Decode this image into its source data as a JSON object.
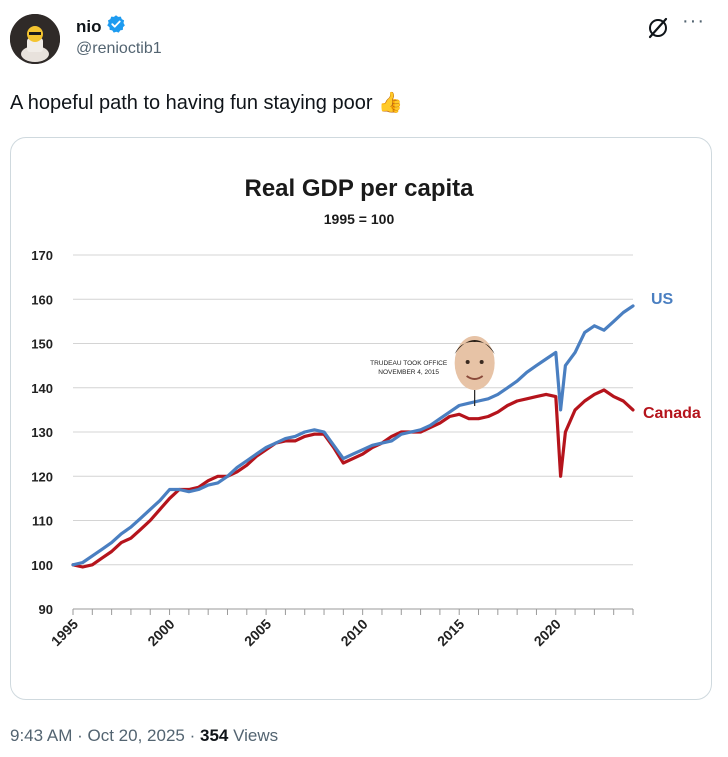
{
  "author": {
    "name": "nio",
    "handle": "@renioctib1",
    "verified": true
  },
  "tweet": {
    "text": "A hopeful path to having fun staying poor",
    "emoji": "👍"
  },
  "meta": {
    "time": "9:43 AM",
    "sep1": "·",
    "date": "Oct 20, 2025",
    "sep2": "·",
    "views": "354",
    "views_label": "Views"
  },
  "icons": {
    "verified": "verified-badge-icon",
    "grok": "grok-icon",
    "more": "more-icon"
  },
  "colors": {
    "us": "#4a7fc1",
    "canada": "#b5141c",
    "verified": "#1d9bf0"
  },
  "chart_data": {
    "type": "line",
    "title": "Real GDP per capita",
    "subtitle": "1995 = 100",
    "annotation": [
      "TRUDEAU TOOK OFFICE",
      "NOVEMBER 4, 2015"
    ],
    "annotation_x": 2015.8,
    "xlim": [
      1995,
      2024
    ],
    "ylim": [
      90,
      170
    ],
    "yticks": [
      "90",
      "100",
      "110",
      "120",
      "130",
      "140",
      "150",
      "160",
      "170"
    ],
    "xtick_labels": [
      {
        "year": 1995,
        "label": "1995"
      },
      {
        "year": 2000,
        "label": "2000"
      },
      {
        "year": 2005,
        "label": "2005"
      },
      {
        "year": 2010,
        "label": "2010"
      },
      {
        "year": 2015,
        "label": "2015"
      },
      {
        "year": 2020,
        "label": "2020"
      }
    ],
    "grid": true,
    "series": [
      {
        "name": "US",
        "x": [
          1995,
          1995.5,
          1996,
          1996.5,
          1997,
          1997.5,
          1998,
          1998.5,
          1999,
          1999.5,
          2000,
          2000.5,
          2001,
          2001.5,
          2002,
          2002.5,
          2003,
          2003.5,
          2004,
          2004.5,
          2005,
          2005.5,
          2006,
          2006.5,
          2007,
          2007.5,
          2008,
          2008.5,
          2009,
          2009.5,
          2010,
          2010.5,
          2011,
          2011.5,
          2012,
          2012.5,
          2013,
          2013.5,
          2014,
          2014.5,
          2015,
          2015.5,
          2016,
          2016.5,
          2017,
          2017.5,
          2018,
          2018.5,
          2019,
          2019.5,
          2020,
          2020.25,
          2020.5,
          2021,
          2021.5,
          2022,
          2022.5,
          2023,
          2023.5,
          2024
        ],
        "y": [
          100,
          100.5,
          102,
          103.5,
          105,
          107,
          108.5,
          110.5,
          112.5,
          114.5,
          117,
          117,
          116.5,
          117,
          118,
          118.5,
          120,
          122,
          123.5,
          125,
          126.5,
          127.5,
          128.5,
          129,
          130,
          130.5,
          130,
          127,
          124,
          125,
          126,
          127,
          127.5,
          128,
          129.5,
          130,
          130.5,
          131.5,
          133,
          134.5,
          136,
          136.5,
          137,
          137.5,
          138.5,
          140,
          141.5,
          143.5,
          145,
          146.5,
          148,
          135,
          145,
          148,
          152.5,
          154,
          153,
          155,
          157,
          158.5
        ]
      },
      {
        "name": "Canada",
        "x": [
          1995,
          1995.5,
          1996,
          1996.5,
          1997,
          1997.5,
          1998,
          1998.5,
          1999,
          1999.5,
          2000,
          2000.5,
          2001,
          2001.5,
          2002,
          2002.5,
          2003,
          2003.5,
          2004,
          2004.5,
          2005,
          2005.5,
          2006,
          2006.5,
          2007,
          2007.5,
          2008,
          2008.5,
          2009,
          2009.5,
          2010,
          2010.5,
          2011,
          2011.5,
          2012,
          2012.5,
          2013,
          2013.5,
          2014,
          2014.5,
          2015,
          2015.5,
          2016,
          2016.5,
          2017,
          2017.5,
          2018,
          2018.5,
          2019,
          2019.5,
          2020,
          2020.25,
          2020.5,
          2021,
          2021.5,
          2022,
          2022.5,
          2023,
          2023.5,
          2024
        ],
        "y": [
          100,
          99.5,
          100,
          101.5,
          103,
          105,
          106,
          108,
          110,
          112.5,
          115,
          117,
          117,
          117.5,
          119,
          120,
          120,
          121,
          122.5,
          124.5,
          126,
          127.5,
          128,
          128,
          129,
          129.5,
          129.5,
          126.5,
          123,
          124,
          125,
          126.5,
          127.5,
          129,
          130,
          130,
          130,
          131,
          132,
          133.5,
          134,
          133,
          133,
          133.5,
          134.5,
          136,
          137,
          137.5,
          138,
          138.5,
          138,
          120,
          130,
          135,
          137,
          138.5,
          139.5,
          138,
          137,
          135
        ]
      }
    ]
  }
}
